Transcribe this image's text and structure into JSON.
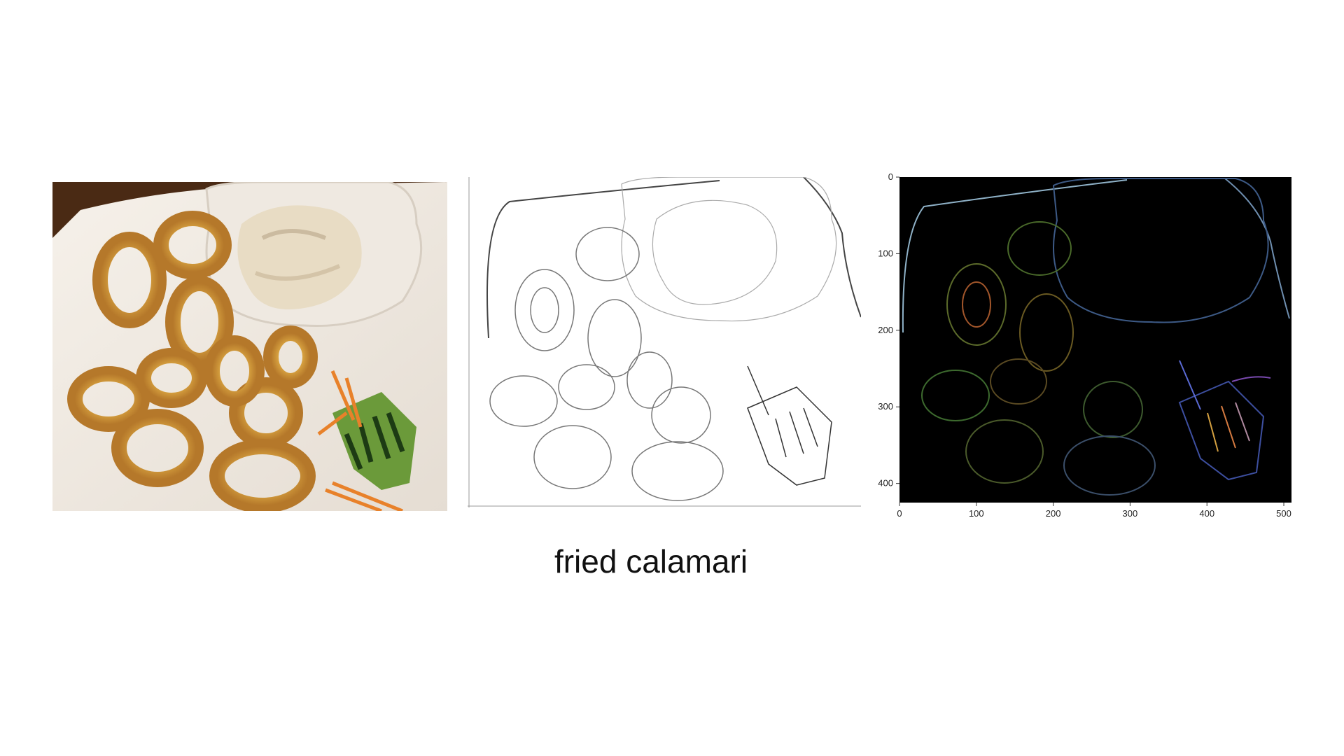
{
  "caption": "fried calamari",
  "panels": [
    {
      "name": "original-photo",
      "subject": "fried calamari rings with tartar sauce and cucumber on a white plate"
    },
    {
      "name": "sketch-filter",
      "subject": "grayscale pencil-sketch edge rendering"
    },
    {
      "name": "edge-detection",
      "subject": "colored edge map on black background"
    }
  ],
  "edge_axes": {
    "x_ticks": [
      "0",
      "100",
      "200",
      "300",
      "400",
      "500"
    ],
    "y_ticks": [
      "0",
      "100",
      "200",
      "300",
      "400"
    ],
    "xlim": [
      0,
      510
    ],
    "ylim": [
      0,
      425
    ]
  }
}
